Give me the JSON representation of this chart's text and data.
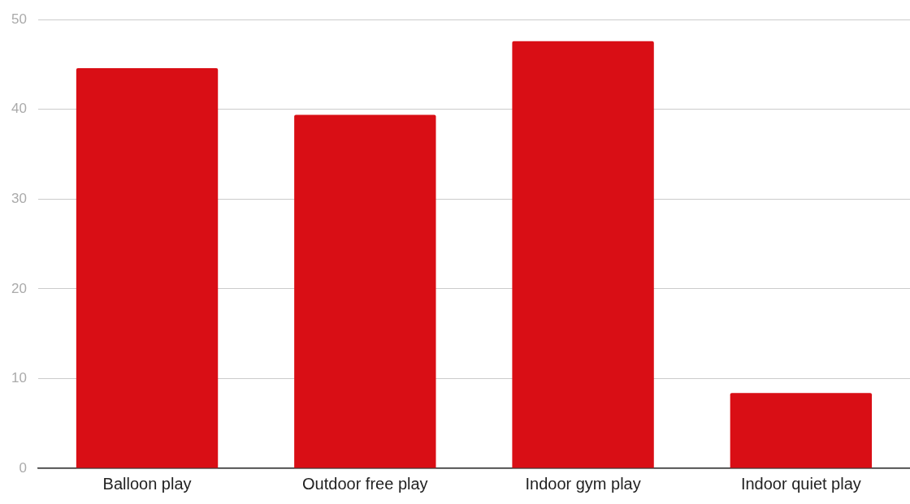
{
  "chart_data": {
    "type": "bar",
    "categories": [
      "Balloon play",
      "Outdoor free play",
      "Indoor gym play",
      "Indoor quiet play"
    ],
    "values": [
      44.6,
      39.4,
      47.6,
      8.4
    ],
    "color": "#d90e15",
    "ylim": [
      0,
      50
    ],
    "yticks": [
      0,
      10,
      20,
      30,
      40,
      50
    ],
    "grid": "y",
    "legend": false
  }
}
